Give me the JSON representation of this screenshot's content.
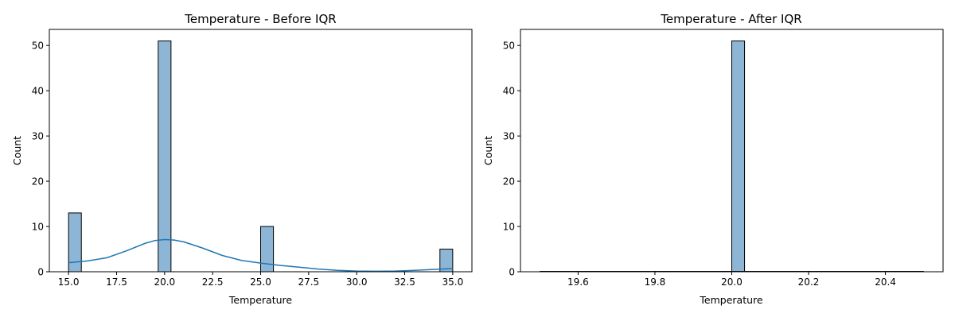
{
  "chart_data": [
    {
      "type": "bar",
      "title": "Temperature - Before IQR",
      "xlabel": "Temperature",
      "ylabel": "Count",
      "xlim": [
        14.0,
        36.0
      ],
      "ylim": [
        0,
        53.55
      ],
      "xticks": [
        15.0,
        17.5,
        20.0,
        22.5,
        25.0,
        27.5,
        30.0,
        32.5,
        35.0
      ],
      "xtick_labels": [
        "15.0",
        "17.5",
        "20.0",
        "22.5",
        "25.0",
        "27.5",
        "30.0",
        "32.5",
        "35.0"
      ],
      "yticks": [
        0,
        10,
        20,
        30,
        40,
        50
      ],
      "ytick_labels": [
        "0",
        "10",
        "20",
        "30",
        "40",
        "50"
      ],
      "bins": [
        {
          "x0": 15.0,
          "x1": 15.6667,
          "count": 13
        },
        {
          "x0": 19.6667,
          "x1": 20.3333,
          "count": 51
        },
        {
          "x0": 25.0,
          "x1": 25.6667,
          "count": 10
        },
        {
          "x0": 34.3333,
          "x1": 35.0,
          "count": 5
        }
      ],
      "bar_color": "#8db6d6",
      "kde_color": "#1f77b4",
      "kde": {
        "x": [
          15.0,
          16.0,
          17.0,
          18.0,
          19.0,
          19.5,
          20.0,
          20.5,
          21.0,
          22.0,
          23.0,
          24.0,
          25.0,
          26.0,
          27.0,
          28.0,
          29.0,
          30.0,
          31.0,
          32.0,
          33.0,
          34.0,
          35.0
        ],
        "y": [
          2.0,
          2.4,
          3.1,
          4.6,
          6.3,
          6.9,
          7.1,
          7.0,
          6.6,
          5.2,
          3.6,
          2.5,
          1.9,
          1.4,
          1.0,
          0.6,
          0.3,
          0.15,
          0.1,
          0.15,
          0.3,
          0.5,
          0.7
        ]
      }
    },
    {
      "type": "bar",
      "title": "Temperature - After IQR",
      "xlabel": "Temperature",
      "ylabel": "Count",
      "xlim": [
        19.45,
        20.55
      ],
      "ylim": [
        0,
        53.55
      ],
      "xticks": [
        19.6,
        19.8,
        20.0,
        20.2,
        20.4
      ],
      "xtick_labels": [
        "19.6",
        "19.8",
        "20.0",
        "20.2",
        "20.4"
      ],
      "yticks": [
        0,
        10,
        20,
        30,
        40,
        50
      ],
      "ytick_labels": [
        "0",
        "10",
        "20",
        "30",
        "40",
        "50"
      ],
      "bins": [
        {
          "x0": 20.0,
          "x1": 20.0333,
          "count": 51
        }
      ],
      "baseline_range": [
        19.5,
        20.5
      ],
      "bar_color": "#8db6d6",
      "kde_color": "#1f77b4"
    }
  ]
}
